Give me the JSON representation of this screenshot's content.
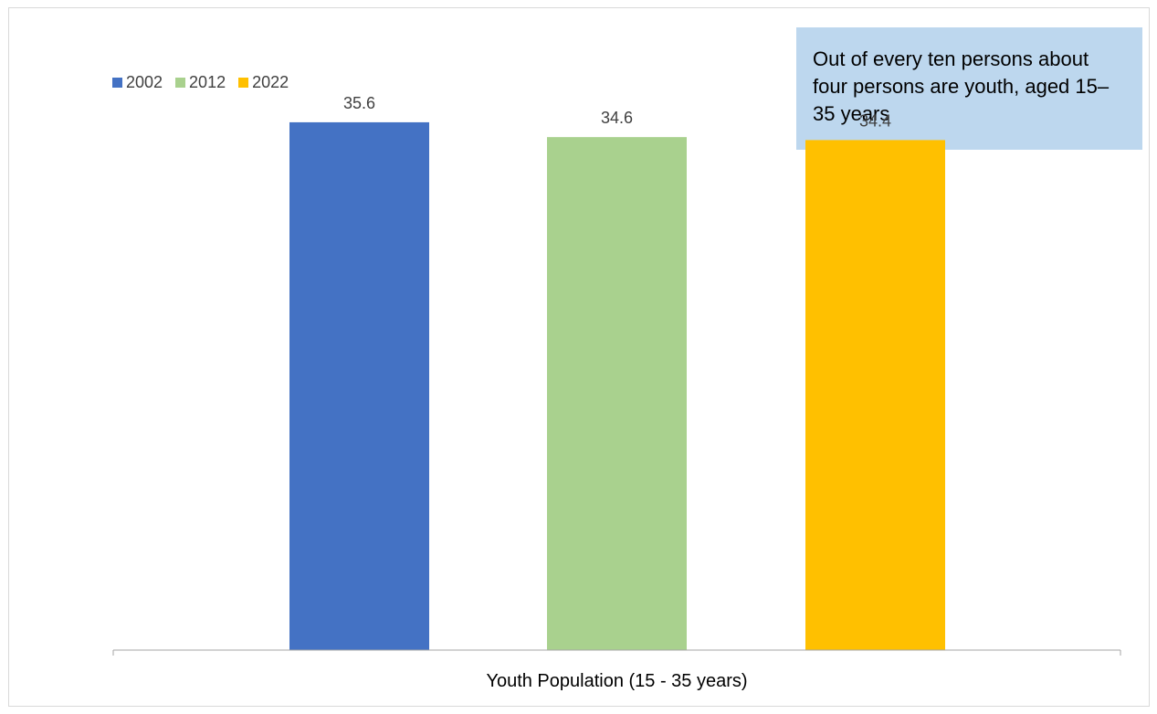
{
  "chart_data": {
    "type": "bar",
    "categories": [
      "Youth Population (15 - 35 years)"
    ],
    "series": [
      {
        "name": "2002",
        "values": [
          35.6
        ],
        "color": "#4472c4"
      },
      {
        "name": "2012",
        "values": [
          34.6
        ],
        "color": "#a9d18e"
      },
      {
        "name": "2022",
        "values": [
          34.4
        ],
        "color": "#ffc000"
      }
    ],
    "title": "",
    "xlabel": "Youth Population (15 - 35 years)",
    "ylabel": "",
    "ylim": [
      0,
      42
    ],
    "grid": false,
    "legend_position": "top-left",
    "annotation": "Out of every ten persons about four persons are youth, aged 15–35 years"
  }
}
